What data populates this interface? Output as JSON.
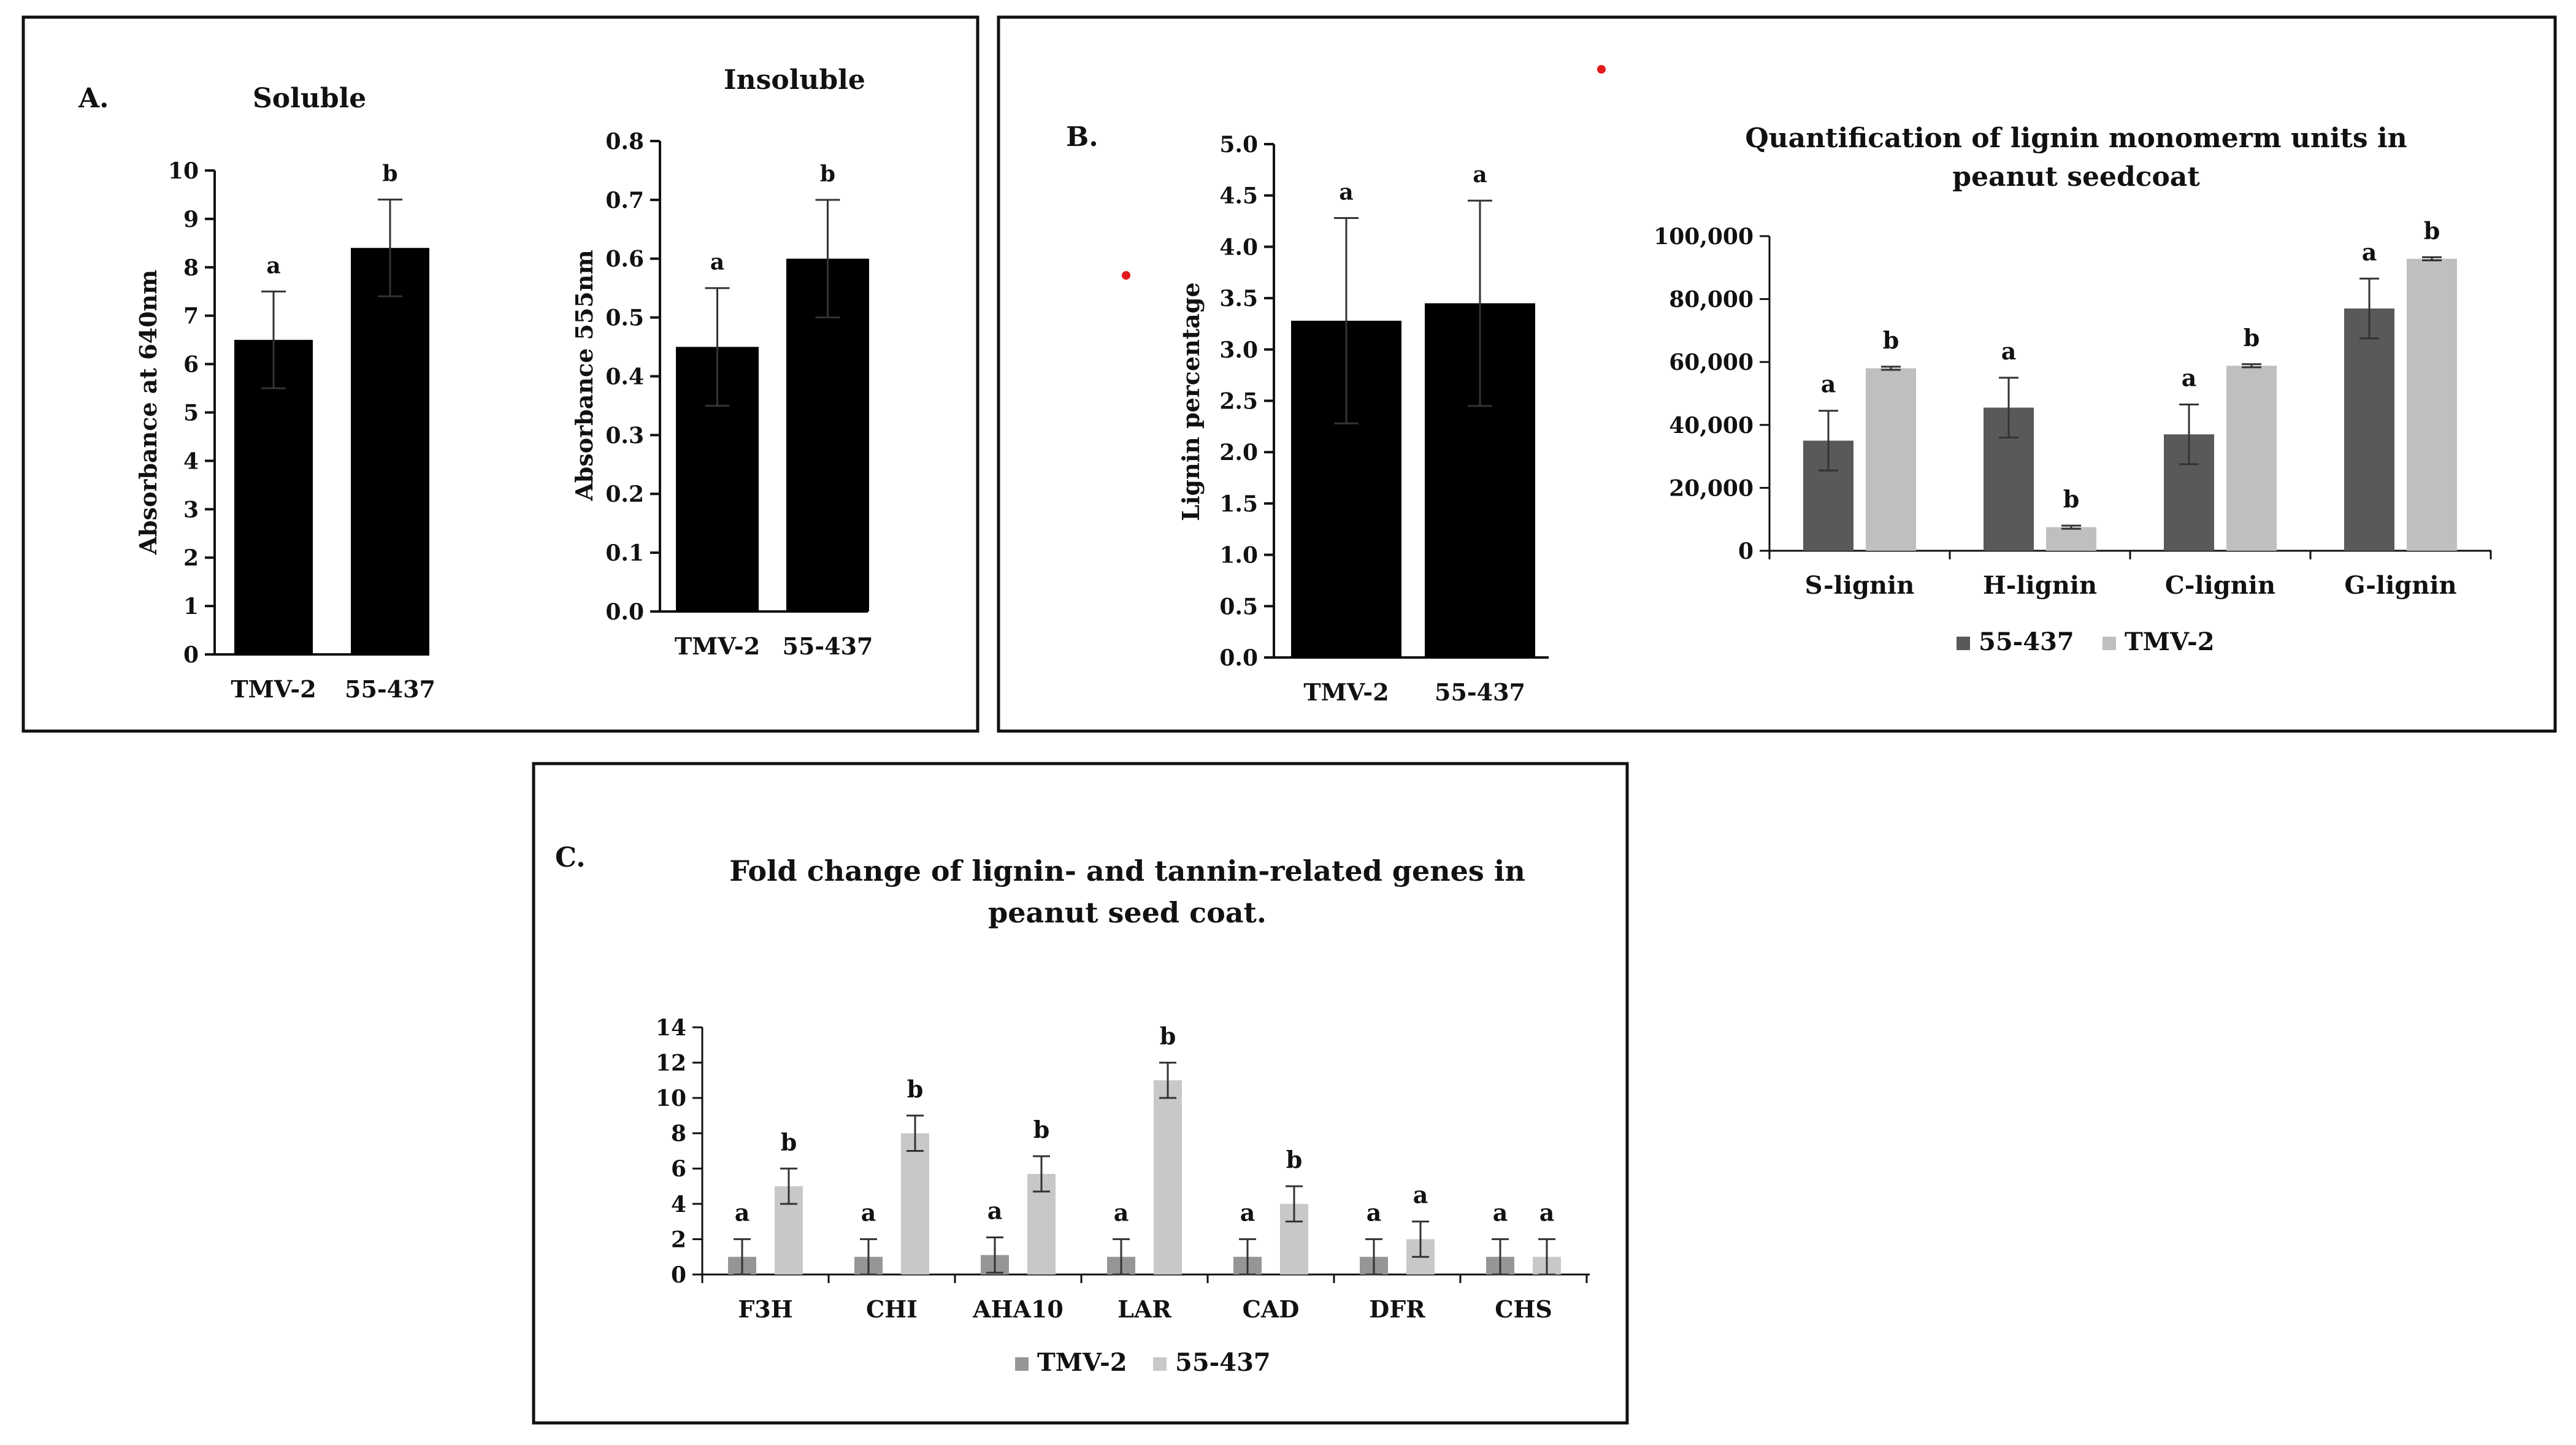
{
  "panels": {
    "a": {
      "letter": "A."
    },
    "b": {
      "letter": "B."
    },
    "c": {
      "letter": "C."
    }
  },
  "chart_data": [
    {
      "id": "soluble",
      "type": "bar",
      "title": "Soluble",
      "xlabel": "",
      "ylabel": "Absorbance at 640nm",
      "ylim": [
        0,
        10
      ],
      "ytick_step": 1,
      "ytick_decimals": 0,
      "categories": [
        "TMV-2",
        "55-437"
      ],
      "series": [
        {
          "name": "",
          "color": "#000000",
          "values": [
            6.5,
            8.4
          ],
          "errors": [
            1.0,
            1.0
          ],
          "letters": [
            "a",
            "b"
          ]
        }
      ]
    },
    {
      "id": "insoluble",
      "type": "bar",
      "title": "Insoluble",
      "xlabel": "",
      "ylabel": "Absorbance 555nm",
      "ylim": [
        0,
        0.8
      ],
      "ytick_step": 0.1,
      "ytick_decimals": 1,
      "categories": [
        "TMV-2",
        "55-437"
      ],
      "series": [
        {
          "name": "",
          "color": "#000000",
          "values": [
            0.45,
            0.6
          ],
          "errors": [
            0.1,
            0.1
          ],
          "letters": [
            "a",
            "b"
          ]
        }
      ]
    },
    {
      "id": "lignin-percentage",
      "type": "bar",
      "title": "",
      "xlabel": "",
      "ylabel": "Lignin percentage",
      "ylim": [
        0,
        5.0
      ],
      "ytick_step": 0.5,
      "ytick_decimals": 1,
      "categories": [
        "TMV-2",
        "55-437"
      ],
      "series": [
        {
          "name": "",
          "color": "#000000",
          "values": [
            3.28,
            3.45
          ],
          "errors": [
            1.0,
            1.0
          ],
          "letters": [
            "a",
            "a"
          ]
        }
      ]
    },
    {
      "id": "lignin-monomers",
      "type": "bar",
      "title": "Quantification of lignin monomerm units in peanut seedcoat",
      "title_lines": [
        "Quantification of lignin monomerm units in",
        "peanut seedcoat"
      ],
      "title_color": "#7f7f7f",
      "xlabel": "",
      "ylabel": "",
      "ylim": [
        0,
        100000
      ],
      "ytick_step": 20000,
      "ytick_decimals": 0,
      "ytick_thousands": true,
      "categories": [
        "S-lignin",
        "H-lignin",
        "C-lignin",
        "G-lignin"
      ],
      "legend": "bottom",
      "series": [
        {
          "name": "55-437",
          "color": "#595959",
          "values": [
            35000,
            45500,
            37000,
            77000
          ],
          "errors": [
            9500,
            9500,
            9500,
            9500
          ],
          "letters": [
            "a",
            "a",
            "a",
            "a"
          ]
        },
        {
          "name": "TMV-2",
          "color": "#bfbfbf",
          "values": [
            58000,
            7500,
            58800,
            92800
          ],
          "errors": [
            500,
            500,
            500,
            500
          ],
          "letters": [
            "b",
            "b",
            "b",
            "b"
          ]
        }
      ]
    },
    {
      "id": "fold-change",
      "type": "bar",
      "title": "Fold change of lignin- and tannin-related genes in peanut seed coat.",
      "title_lines": [
        "Fold change of lignin- and tannin-related genes in",
        "peanut seed coat."
      ],
      "xlabel": "",
      "ylabel": "",
      "ylim": [
        0,
        14
      ],
      "ytick_step": 2,
      "ytick_decimals": 0,
      "categories": [
        "F3H",
        "CHI",
        "AHA10",
        "LAR",
        "CAD",
        "DFR",
        "CHS"
      ],
      "legend": "bottom",
      "series": [
        {
          "name": "TMV-2",
          "color": "#969696",
          "values": [
            1,
            1,
            1.1,
            1,
            1,
            1,
            1
          ],
          "errors": [
            1,
            1,
            1,
            1,
            1,
            1,
            1
          ],
          "letters": [
            "a",
            "a",
            "a",
            "a",
            "a",
            "a",
            "a"
          ]
        },
        {
          "name": "55-437",
          "color": "#c8c8c8",
          "values": [
            5,
            8,
            5.7,
            11,
            4,
            2,
            1
          ],
          "errors": [
            1,
            1,
            1,
            1,
            1,
            1,
            1
          ],
          "letters": [
            "b",
            "b",
            "b",
            "b",
            "b",
            "a",
            "a"
          ]
        }
      ]
    }
  ]
}
